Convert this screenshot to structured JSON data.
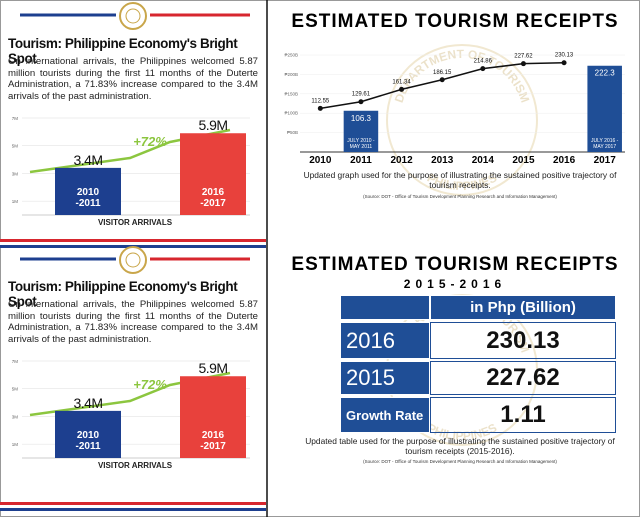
{
  "left_panels": [
    {
      "title": "Tourism: Philippine Economy's Bright Spot",
      "body": "On international arrivals, the Philippines welcomed 5.87 million tourists during the first 11 months of the Duterte Administration, a 71.83% increase compared to the 3.4M arrivals of the past administration."
    },
    {
      "title": "Tourism: Philippine Economy's Bright Spot",
      "body": "On international arrivals, the Philippines welcomed 5.87 million tourists during the first 11 months of the Duterte Administration, a 71.83% increase compared to the 3.4M arrivals of the past administration."
    }
  ],
  "watermark": {
    "top": "DEPARTMENT OF TOURISM",
    "bottom": "PHILIPPINES"
  },
  "chart_data": [
    {
      "type": "bar",
      "categories": [
        "2010 -2011",
        "2016 -2017"
      ],
      "values": [
        3.4,
        5.9
      ],
      "value_labels": [
        "3.4M",
        "5.9M"
      ],
      "colors": [
        "#1d3f8f",
        "#e8413c"
      ],
      "ylim": [
        0,
        7
      ],
      "yticks": [
        {
          "value": 1,
          "label": "1M"
        },
        {
          "value": 3,
          "label": "3M"
        },
        {
          "value": 5,
          "label": "5M"
        },
        {
          "value": 7,
          "label": "7M"
        }
      ],
      "annotation": "+72%",
      "xlabel": "VISITOR ARRIVALS"
    },
    {
      "type": "bar",
      "categories": [
        "2010 -2011",
        "2016 -2017"
      ],
      "values": [
        3.4,
        5.9
      ],
      "value_labels": [
        "3.4M",
        "5.9M"
      ],
      "colors": [
        "#1d3f8f",
        "#e8413c"
      ],
      "ylim": [
        0,
        7
      ],
      "yticks": [
        {
          "value": 1,
          "label": "1M"
        },
        {
          "value": 3,
          "label": "3M"
        },
        {
          "value": 5,
          "label": "5M"
        },
        {
          "value": 7,
          "label": "7M"
        }
      ],
      "annotation": "+72%",
      "xlabel": "VISITOR ARRIVALS"
    },
    {
      "type": "bar-line",
      "title": "ESTIMATED TOURISM RECEIPTS",
      "categories": [
        "2010",
        "2011",
        "2012",
        "2013",
        "2014",
        "2015",
        "2016",
        "2017"
      ],
      "series": [
        {
          "type": "line",
          "color": "#111111",
          "values": [
            112.55,
            129.61,
            161.34,
            186.15,
            214.86,
            227.62,
            230.13,
            null
          ]
        },
        {
          "type": "bar",
          "color": "#1f4e96",
          "values": [
            null,
            106.3,
            null,
            null,
            null,
            null,
            null,
            222.3
          ],
          "bar_labels": [
            null,
            "JULY 2010 - MAY 2011",
            null,
            null,
            null,
            null,
            null,
            "JULY 2016 -MAY 2017"
          ]
        }
      ],
      "ylim": [
        0,
        250
      ],
      "yticks": [
        {
          "value": 50,
          "label": "₱50B"
        },
        {
          "value": 100,
          "label": "₱100B"
        },
        {
          "value": 150,
          "label": "₱150B"
        },
        {
          "value": 200,
          "label": "₱200B"
        },
        {
          "value": 250,
          "label": "₱250B"
        }
      ],
      "caption": "Updated graph used for the purpose of illustrating the sustained positive trajectory of tourism receipts.",
      "source": "(Source: DOT - Office of Tourism Development Planning Research and Information Management)"
    }
  ],
  "table_section": {
    "title": "ESTIMATED TOURISM RECEIPTS",
    "subtitle": "2015-2016",
    "header": "in Php (Billion)",
    "rows": [
      [
        "2016",
        230.13
      ],
      [
        "2015",
        227.62
      ],
      [
        "Growth Rate",
        1.11
      ]
    ],
    "caption": "Updated table used for the purpose of illustrating the sustained positive trajectory of tourism receipts (2015-2016).",
    "source": "(Source: DOT - Office of Tourism Development Planning Research and Information Management)"
  }
}
